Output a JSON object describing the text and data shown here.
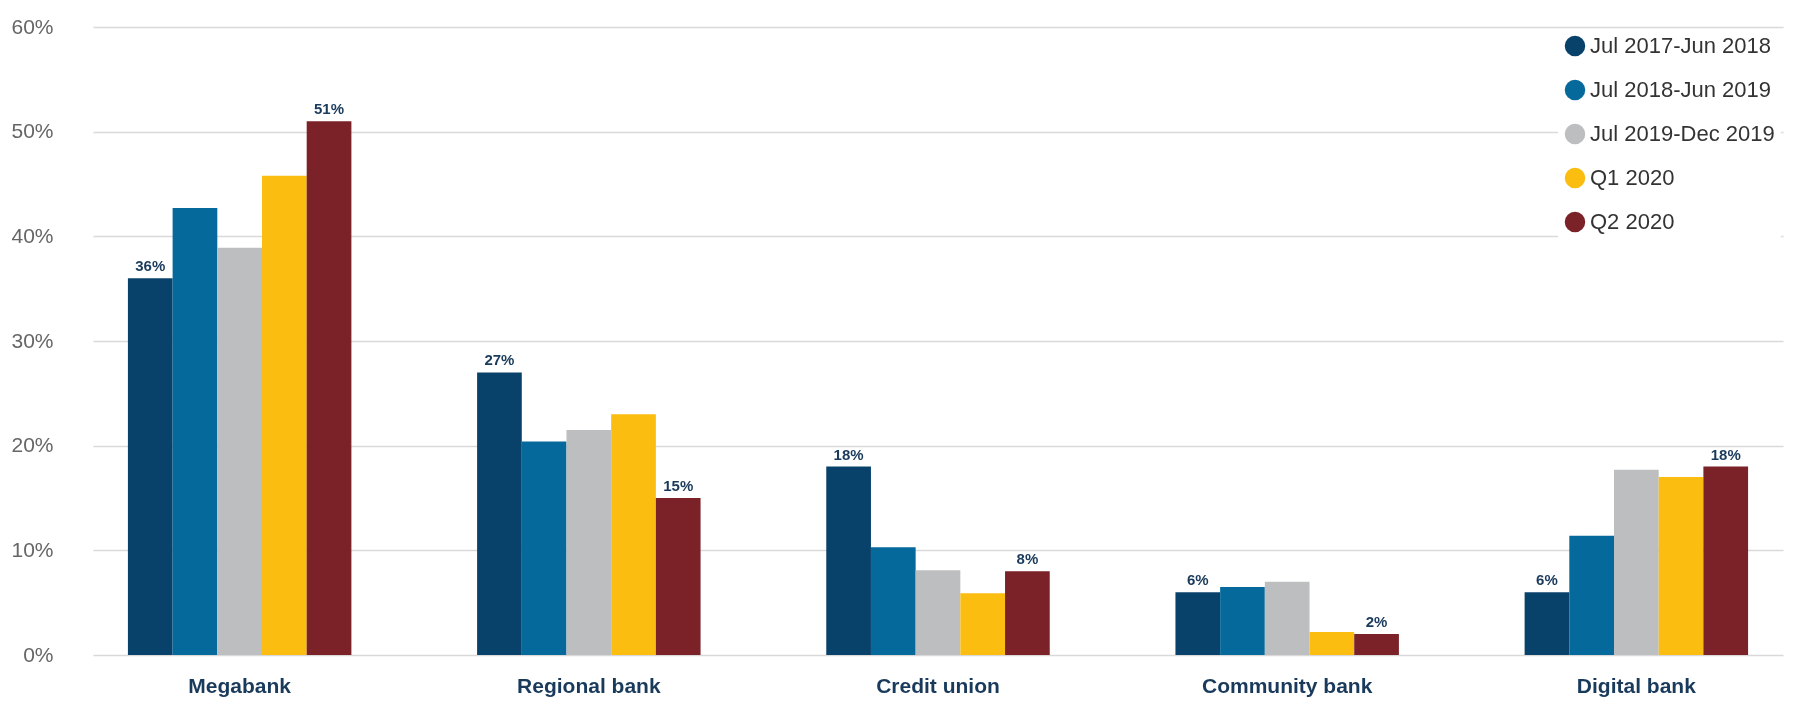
{
  "chart_data": {
    "type": "bar",
    "categories": [
      "Megabank",
      "Regional bank",
      "Credit union",
      "Community bank",
      "Digital bank"
    ],
    "ylim": [
      0,
      60
    ],
    "yticks": [
      {
        "value": 0,
        "label": "0%"
      },
      {
        "value": 10,
        "label": "10%"
      },
      {
        "value": 20,
        "label": "20%"
      },
      {
        "value": 30,
        "label": "30%"
      },
      {
        "value": 40,
        "label": "40%"
      },
      {
        "value": 50,
        "label": "50%"
      },
      {
        "value": 60,
        "label": "60%"
      }
    ],
    "grid": "y",
    "legend": "top right",
    "series": [
      {
        "name": "Jul 2017-Jun 2018",
        "color": "#08426b",
        "values": [
          36,
          27,
          18,
          6,
          6
        ],
        "value_labels": [
          "36%",
          "27%",
          "18%",
          "6%",
          "6%"
        ]
      },
      {
        "name": "Jul 2018-Jun 2019",
        "color": "#056a9b",
        "values": [
          42.7,
          20.4,
          10.3,
          6.5,
          11.4
        ]
      },
      {
        "name": "Jul 2019-Dec 2019",
        "color": "#bcbec0",
        "values": [
          38.9,
          21.5,
          8.1,
          7.0,
          17.7
        ]
      },
      {
        "name": "Q1 2020",
        "color": "#fbbd10",
        "values": [
          45.8,
          23.0,
          5.9,
          2.2,
          17.0
        ]
      },
      {
        "name": "Q2 2020",
        "color": "#7a2227",
        "values": [
          51,
          15,
          8,
          2,
          18
        ],
        "value_labels": [
          "51%",
          "15%",
          "8%",
          "2%",
          "18%"
        ]
      }
    ]
  }
}
